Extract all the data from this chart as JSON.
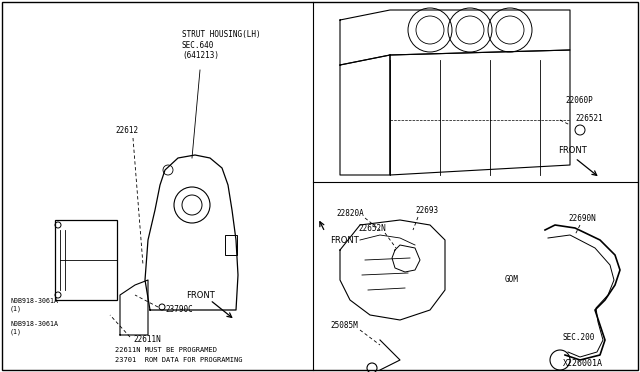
{
  "bg_color": "#ffffff",
  "line_color": "#000000",
  "text_color": "#000000",
  "diagram_id": "X226001A",
  "labels": {
    "strut_housing": "STRUT HOUSING(LH)\nSEC.640\n(641213)",
    "part_22612": "22612",
    "part_23790C": "23790C",
    "part_22611N": "22611N",
    "part_0B918_1": "N0B918-3061A\n(1)",
    "part_0B918_2": "N0B918-3061A\n(1)",
    "note1": "22611N MUST BE PROGRAMED",
    "note2": "23701  ROM DATA FOR PROGRAMING",
    "part_22060P": "22060P",
    "part_226521": "226521",
    "part_22820A": "22820A",
    "part_22693": "22693",
    "part_22652N": "22652N",
    "part_25085M": "25085M",
    "part_GOM": "GOM",
    "part_22690N": "22690N",
    "part_SEC200": "SEC.200",
    "front1": "FRONT",
    "front2": "FRONT",
    "front3": "FRONT"
  }
}
